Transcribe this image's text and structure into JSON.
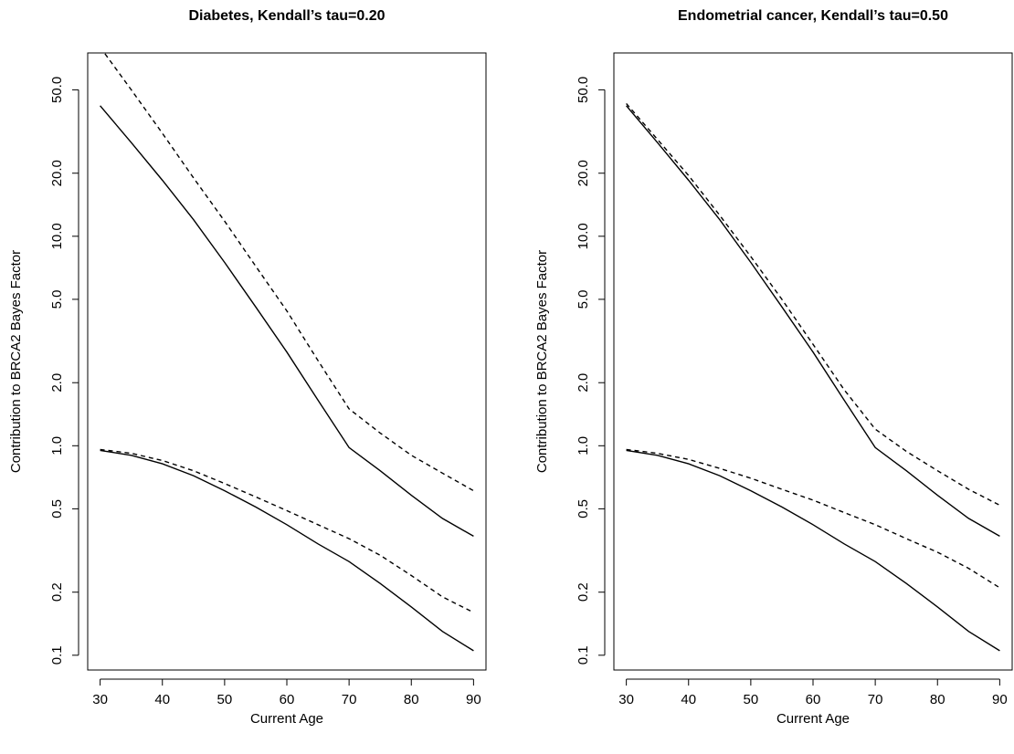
{
  "chart_data": [
    {
      "type": "line",
      "title": "Diabetes, Kendall’s tau=0.20",
      "xlabel": "Current Age",
      "ylabel": "Contribution to BRCA2 Bayes Factor",
      "yscale": "log",
      "xlim": [
        28,
        92
      ],
      "ylim": [
        0.085,
        75
      ],
      "x_ticks": [
        30,
        40,
        50,
        60,
        70,
        80,
        90
      ],
      "x_tick_labels": [
        "30",
        "40",
        "50",
        "60",
        "70",
        "80",
        "90"
      ],
      "y_ticks": [
        0.1,
        0.2,
        0.5,
        1.0,
        2.0,
        5.0,
        10.0,
        20.0,
        50.0
      ],
      "y_tick_labels": [
        "0.1",
        "0.2",
        "0.5",
        "1.0",
        "2.0",
        "5.0",
        "10.0",
        "20.0",
        "50.0"
      ],
      "grid": false,
      "legend": "none",
      "series": [
        {
          "style": "solid",
          "x": [
            30,
            35,
            40,
            45,
            50,
            55,
            60,
            65,
            70,
            75,
            80,
            85,
            90
          ],
          "y": [
            42,
            28,
            18.5,
            12,
            7.5,
            4.6,
            2.8,
            1.65,
            0.98,
            0.76,
            0.58,
            0.45,
            0.37
          ]
        },
        {
          "style": "dashed",
          "x": [
            30,
            35,
            40,
            45,
            50,
            55,
            60,
            65,
            70,
            75,
            80,
            85,
            90
          ],
          "y": [
            80,
            50,
            31,
            19,
            11.8,
            7.2,
            4.4,
            2.55,
            1.5,
            1.15,
            0.9,
            0.74,
            0.61
          ]
        },
        {
          "style": "solid",
          "x": [
            30,
            35,
            40,
            45,
            50,
            55,
            60,
            65,
            70,
            75,
            80,
            85,
            90
          ],
          "y": [
            0.95,
            0.9,
            0.82,
            0.72,
            0.61,
            0.51,
            0.42,
            0.34,
            0.28,
            0.22,
            0.17,
            0.13,
            0.105
          ]
        },
        {
          "style": "dashed",
          "x": [
            30,
            35,
            40,
            45,
            50,
            55,
            60,
            65,
            70,
            75,
            80,
            85,
            90
          ],
          "y": [
            0.96,
            0.92,
            0.85,
            0.76,
            0.66,
            0.57,
            0.49,
            0.42,
            0.36,
            0.3,
            0.24,
            0.19,
            0.16
          ]
        }
      ]
    },
    {
      "type": "line",
      "title": "Endometrial cancer, Kendall’s tau=0.50",
      "xlabel": "Current Age",
      "ylabel": "Contribution to BRCA2 Bayes Factor",
      "yscale": "log",
      "xlim": [
        28,
        92
      ],
      "ylim": [
        0.085,
        75
      ],
      "x_ticks": [
        30,
        40,
        50,
        60,
        70,
        80,
        90
      ],
      "x_tick_labels": [
        "30",
        "40",
        "50",
        "60",
        "70",
        "80",
        "90"
      ],
      "y_ticks": [
        0.1,
        0.2,
        0.5,
        1.0,
        2.0,
        5.0,
        10.0,
        20.0,
        50.0
      ],
      "y_tick_labels": [
        "0.1",
        "0.2",
        "0.5",
        "1.0",
        "2.0",
        "5.0",
        "10.0",
        "20.0",
        "50.0"
      ],
      "grid": false,
      "legend": "none",
      "series": [
        {
          "style": "solid",
          "x": [
            30,
            35,
            40,
            45,
            50,
            55,
            60,
            65,
            70,
            75,
            80,
            85,
            90
          ],
          "y": [
            42,
            28,
            18.5,
            12,
            7.5,
            4.6,
            2.8,
            1.65,
            0.98,
            0.76,
            0.58,
            0.45,
            0.37
          ]
        },
        {
          "style": "dashed",
          "x": [
            30,
            35,
            40,
            45,
            50,
            55,
            60,
            65,
            70,
            75,
            80,
            85,
            90
          ],
          "y": [
            43,
            29,
            19.5,
            12.6,
            8,
            5,
            3.05,
            1.85,
            1.2,
            0.94,
            0.76,
            0.62,
            0.52
          ]
        },
        {
          "style": "solid",
          "x": [
            30,
            35,
            40,
            45,
            50,
            55,
            60,
            65,
            70,
            75,
            80,
            85,
            90
          ],
          "y": [
            0.95,
            0.9,
            0.82,
            0.72,
            0.61,
            0.51,
            0.42,
            0.34,
            0.28,
            0.22,
            0.17,
            0.13,
            0.105
          ]
        },
        {
          "style": "dashed",
          "x": [
            30,
            35,
            40,
            45,
            50,
            55,
            60,
            65,
            70,
            75,
            80,
            85,
            90
          ],
          "y": [
            0.96,
            0.92,
            0.86,
            0.78,
            0.7,
            0.62,
            0.55,
            0.48,
            0.42,
            0.36,
            0.31,
            0.26,
            0.21
          ]
        }
      ]
    }
  ]
}
